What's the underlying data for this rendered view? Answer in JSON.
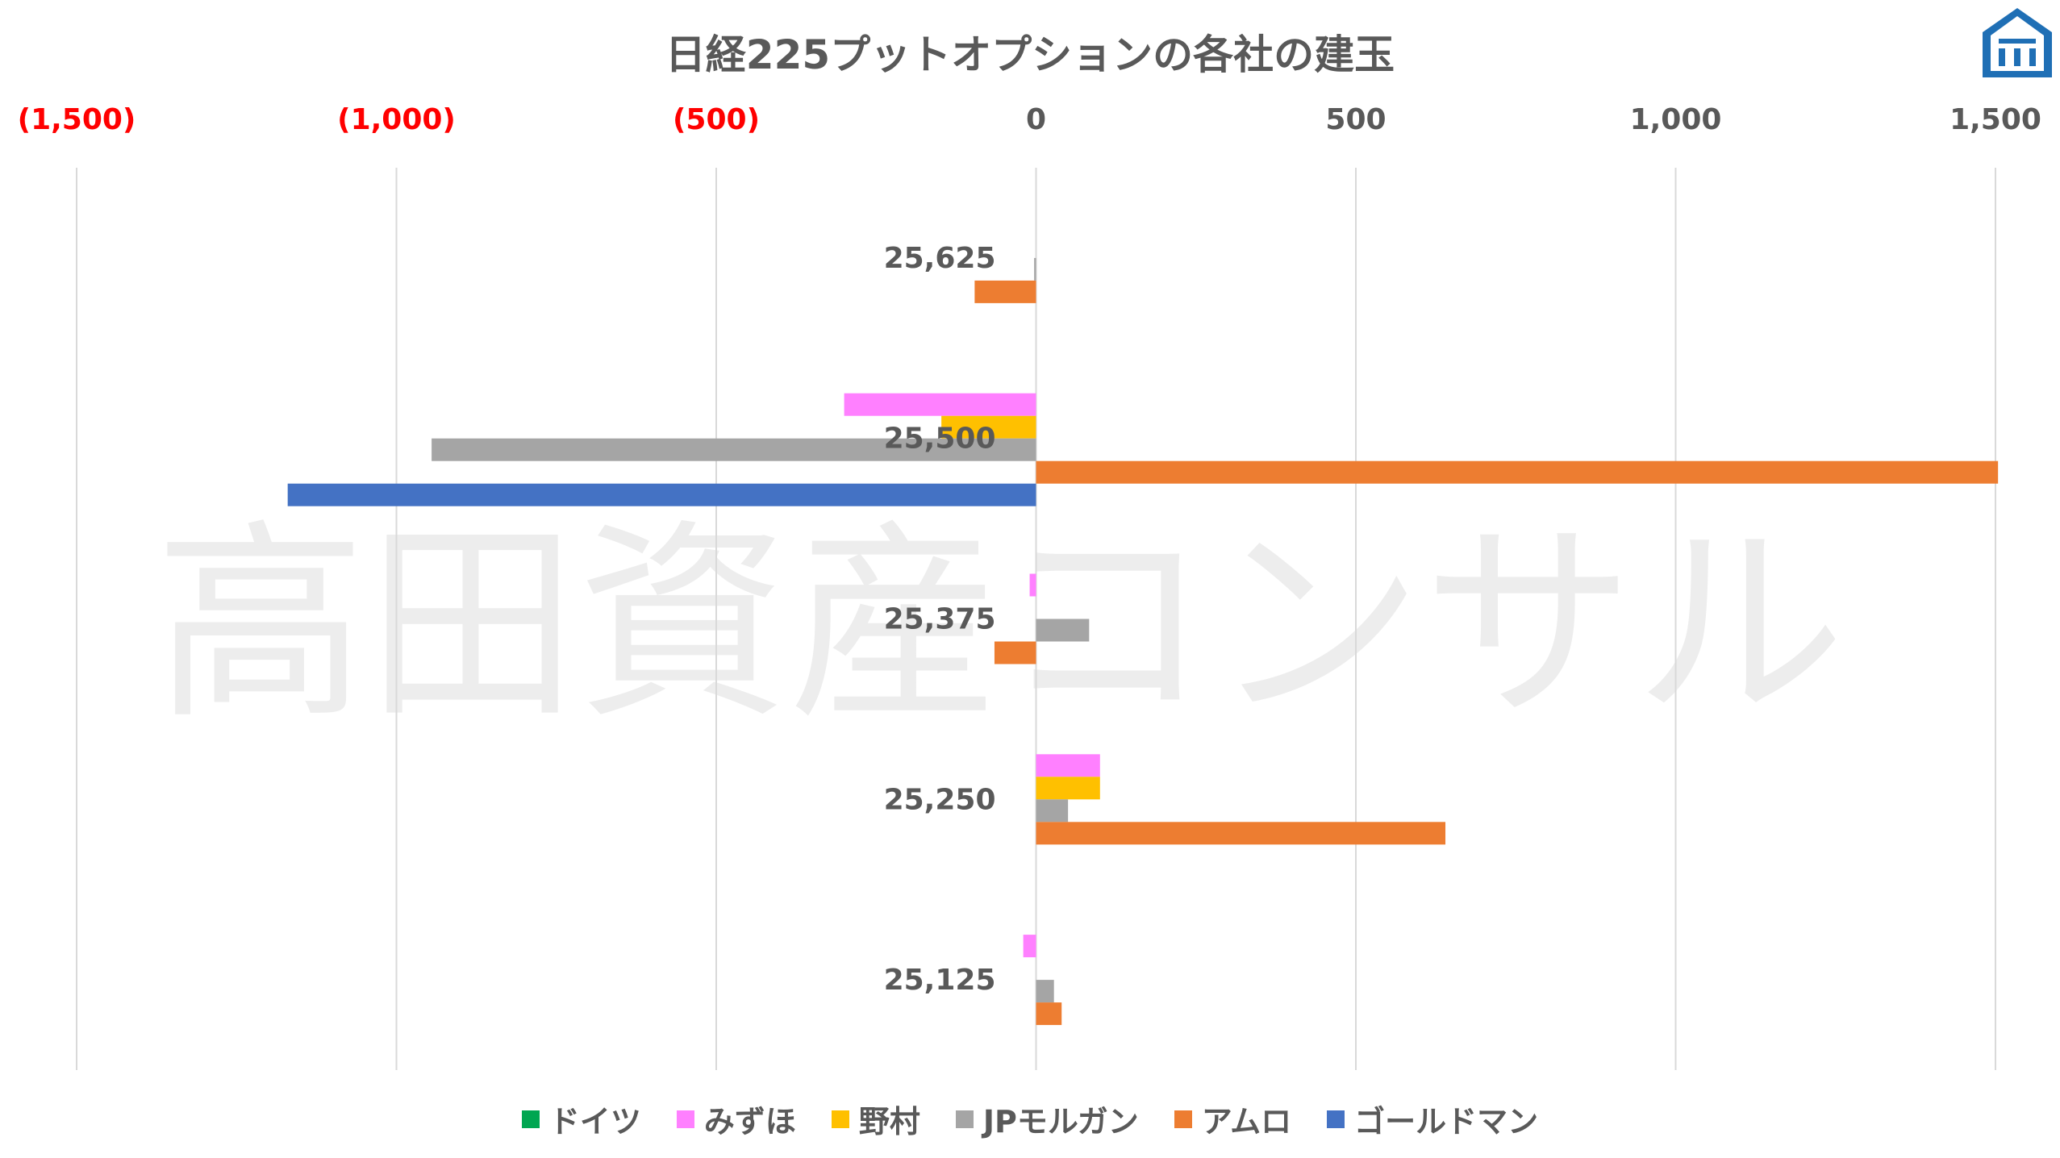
{
  "chart_data": {
    "type": "bar",
    "orientation": "horizontal",
    "title": "日経225プットオプションの各社の建玉",
    "watermark": "高田資産コンサル",
    "xlim": [
      -1500,
      1500
    ],
    "xticks": [
      {
        "value": -1500,
        "label": "(1,500)",
        "color": "#ff0000"
      },
      {
        "value": -1000,
        "label": "(1,000)",
        "color": "#ff0000"
      },
      {
        "value": -500,
        "label": "(500)",
        "color": "#ff0000"
      },
      {
        "value": 0,
        "label": "0",
        "color": "#595959"
      },
      {
        "value": 500,
        "label": "500",
        "color": "#595959"
      },
      {
        "value": 1000,
        "label": "1,000",
        "color": "#595959"
      },
      {
        "value": 1500,
        "label": "1,500",
        "color": "#595959"
      }
    ],
    "grid": true,
    "legend_position": "bottom",
    "categories": [
      "25,625",
      "25,500",
      "25,375",
      "25,250",
      "25,125"
    ],
    "series": [
      {
        "name": "ドイツ",
        "color": "#00a651",
        "values": [
          0,
          0,
          0,
          0,
          0
        ]
      },
      {
        "name": "みずほ",
        "color": "#ff80ff",
        "values": [
          0,
          -300,
          -10,
          100,
          -20
        ]
      },
      {
        "name": "野村",
        "color": "#ffc000",
        "values": [
          0,
          -148,
          0,
          100,
          0
        ]
      },
      {
        "name": "JPモルガン",
        "color": "#a5a5a5",
        "values": [
          -3,
          -945,
          83,
          50,
          28
        ]
      },
      {
        "name": "アムロ",
        "color": "#ed7d31",
        "values": [
          -96,
          1504,
          -65,
          640,
          40
        ]
      },
      {
        "name": "ゴールドマン",
        "color": "#4472c4",
        "values": [
          0,
          -1170,
          0,
          0,
          0
        ]
      }
    ]
  },
  "logo": {
    "icon": "house-icon",
    "color": "#1f6fb5"
  }
}
